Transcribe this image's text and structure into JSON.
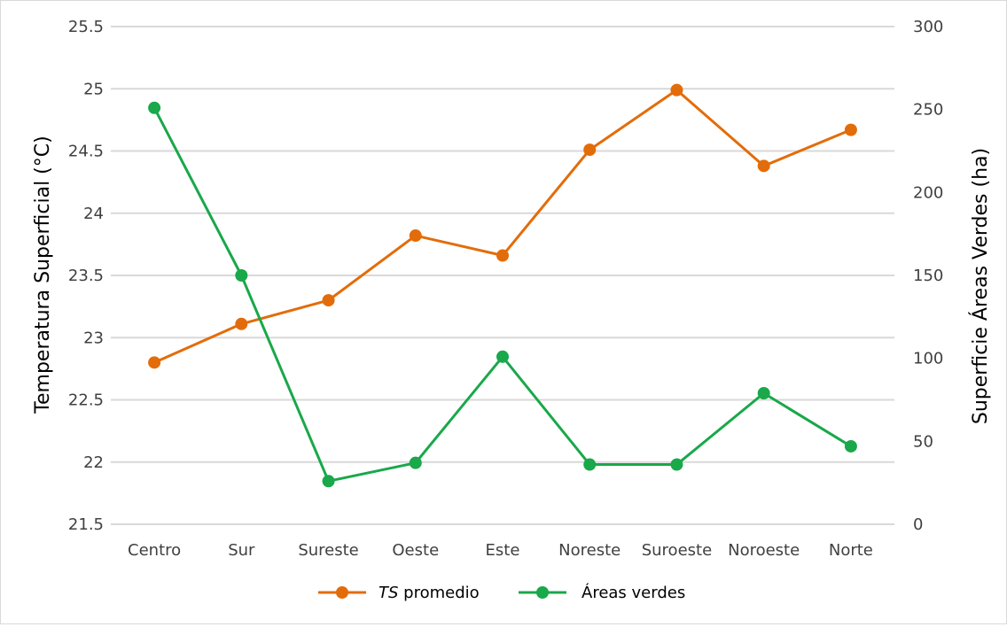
{
  "chart_data": {
    "type": "line",
    "categories": [
      "Centro",
      "Sur",
      "Sureste",
      "Oeste",
      "Este",
      "Noreste",
      "Suroeste",
      "Noroeste",
      "Norte"
    ],
    "series": [
      {
        "name_italic": "TS",
        "name_rest": " promedio",
        "axis": "left",
        "color": "#E36C0A",
        "values": [
          22.8,
          23.11,
          23.3,
          23.82,
          23.66,
          24.51,
          24.99,
          24.38,
          24.67
        ]
      },
      {
        "name": "Áreas verdes",
        "axis": "right",
        "color": "#19A84A",
        "values": [
          251,
          150,
          26,
          37,
          101,
          36,
          36,
          79,
          47
        ]
      }
    ],
    "ylabel": "Temperatura Superficial (°C)",
    "y2label": "Superficie Áreas Verdes (ha)",
    "ylim": [
      21.5,
      25.5
    ],
    "yticks": [
      "21.5",
      "22",
      "22.5",
      "23",
      "23.5",
      "24",
      "24.5",
      "25",
      "25.5"
    ],
    "y2lim": [
      0,
      300
    ],
    "y2ticks": [
      "0",
      "50",
      "100",
      "150",
      "200",
      "250",
      "300"
    ],
    "grid": true,
    "legend": "bottom"
  }
}
